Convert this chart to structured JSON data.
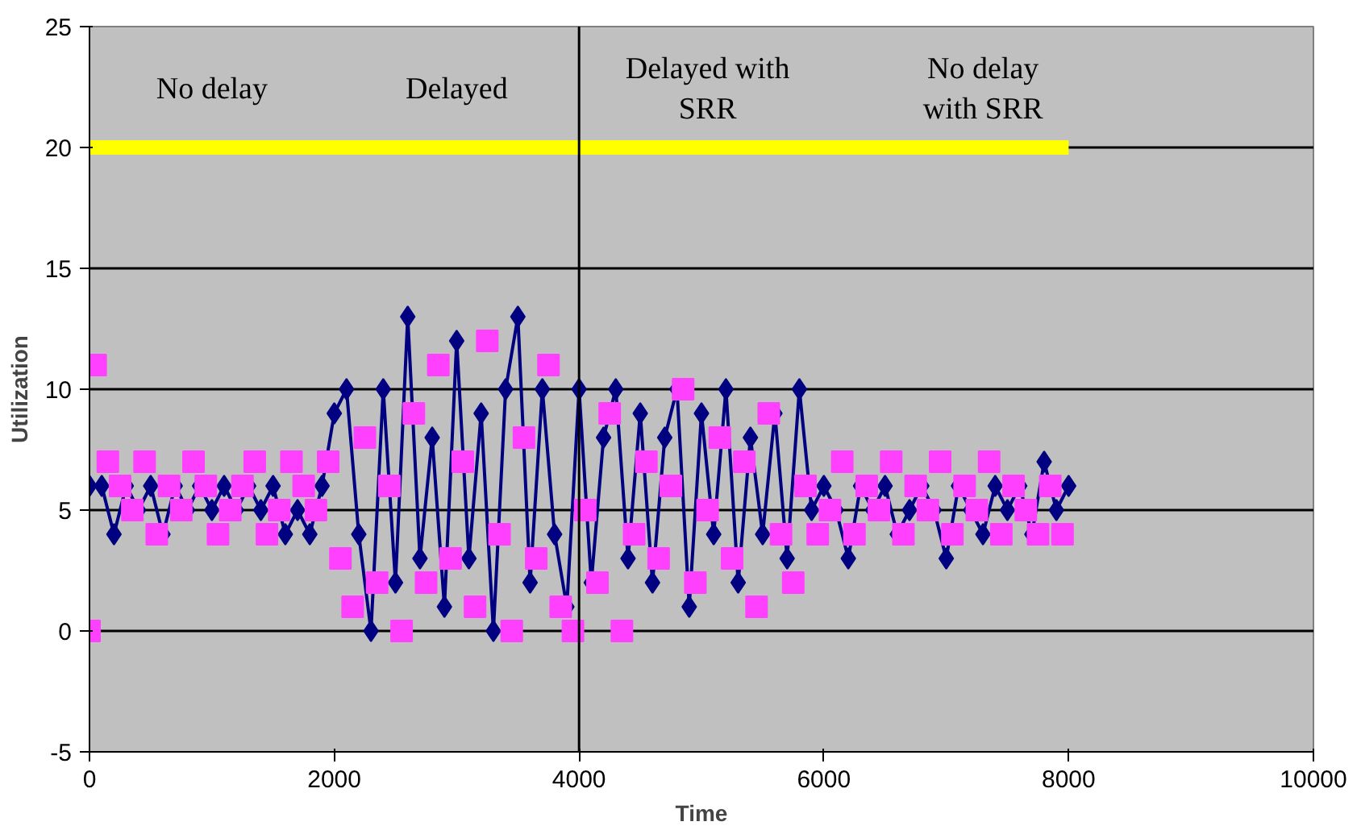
{
  "chart_data": {
    "type": "line",
    "xlabel": "Time",
    "ylabel": "Utilization",
    "xlim": [
      0,
      10000
    ],
    "ylim": [
      -5,
      25
    ],
    "xticks": [
      0,
      2000,
      4000,
      6000,
      8000,
      10000
    ],
    "yticks": [
      -5,
      0,
      5,
      10,
      15,
      20,
      25
    ],
    "grid": "y",
    "series": [
      {
        "color": "#ffff00",
        "marker": "none",
        "x": [
          0,
          8000
        ],
        "values": [
          20,
          20
        ]
      },
      {
        "color": "#000080",
        "marker": "diamond",
        "x": [
          0,
          100,
          200,
          300,
          400,
          500,
          600,
          700,
          800,
          900,
          1000,
          1100,
          1200,
          1300,
          1400,
          1500,
          1600,
          1700,
          1800,
          1900,
          2000,
          2100,
          2200,
          2300,
          2400,
          2500,
          2600,
          2700,
          2800,
          2900,
          3000,
          3100,
          3200,
          3300,
          3400,
          3500,
          3600,
          3700,
          3800,
          3900,
          4000,
          4100,
          4200,
          4300,
          4400,
          4500,
          4600,
          4700,
          4800,
          4900,
          5000,
          5100,
          5200,
          5300,
          5400,
          5500,
          5600,
          5700,
          5800,
          5900,
          6000,
          6100,
          6200,
          6300,
          6400,
          6500,
          6600,
          6700,
          6800,
          6900,
          7000,
          7100,
          7200,
          7300,
          7400,
          7500,
          7600,
          7700,
          7800,
          7900,
          8000
        ],
        "values": [
          6,
          6,
          4,
          6,
          5,
          6,
          4,
          6,
          5,
          6,
          5,
          6,
          5,
          6,
          5,
          6,
          4,
          5,
          4,
          6,
          9,
          10,
          4,
          0,
          10,
          2,
          13,
          3,
          8,
          1,
          12,
          3,
          9,
          0,
          10,
          13,
          2,
          10,
          4,
          1,
          10,
          2,
          8,
          10,
          3,
          9,
          2,
          8,
          10,
          1,
          9,
          4,
          10,
          2,
          8,
          4,
          9,
          3,
          10,
          5,
          6,
          5,
          3,
          6,
          5,
          6,
          4,
          5,
          6,
          5,
          3,
          6,
          5,
          4,
          6,
          5,
          6,
          4,
          7,
          5,
          6
        ]
      },
      {
        "type": "scatter",
        "color": "#ff40ff",
        "marker": "square",
        "x": [
          0,
          50,
          150,
          250,
          350,
          450,
          550,
          650,
          750,
          850,
          950,
          1050,
          1150,
          1250,
          1350,
          1450,
          1550,
          1650,
          1750,
          1850,
          1950,
          2050,
          2150,
          2250,
          2350,
          2450,
          2550,
          2650,
          2750,
          2850,
          2950,
          3050,
          3150,
          3250,
          3350,
          3450,
          3550,
          3650,
          3750,
          3850,
          3950,
          4050,
          4150,
          4250,
          4350,
          4450,
          4550,
          4650,
          4750,
          4850,
          4950,
          5050,
          5150,
          5250,
          5350,
          5450,
          5550,
          5650,
          5750,
          5850,
          5950,
          6050,
          6150,
          6250,
          6350,
          6450,
          6550,
          6650,
          6750,
          6850,
          6950,
          7050,
          7150,
          7250,
          7350,
          7450,
          7550,
          7650,
          7750,
          7850,
          7950
        ],
        "values": [
          0,
          11,
          7,
          6,
          5,
          7,
          4,
          6,
          5,
          7,
          6,
          4,
          5,
          6,
          7,
          4,
          5,
          7,
          6,
          5,
          7,
          3,
          1,
          8,
          2,
          6,
          0,
          9,
          2,
          11,
          3,
          7,
          1,
          12,
          4,
          0,
          8,
          3,
          11,
          1,
          0,
          5,
          2,
          9,
          0,
          4,
          7,
          3,
          6,
          10,
          2,
          5,
          8,
          3,
          7,
          1,
          9,
          4,
          2,
          6,
          4,
          5,
          7,
          4,
          6,
          5,
          7,
          4,
          6,
          5,
          7,
          4,
          6,
          5,
          7,
          4,
          6,
          5,
          4,
          6,
          4
        ]
      }
    ],
    "ref_lines": [
      {
        "axis": "x",
        "value": 4000,
        "color": "#000000"
      }
    ],
    "annotations": [
      "No delay",
      "Delayed",
      "Delayed with\nSRR",
      "No delay\nwith SRR"
    ]
  }
}
